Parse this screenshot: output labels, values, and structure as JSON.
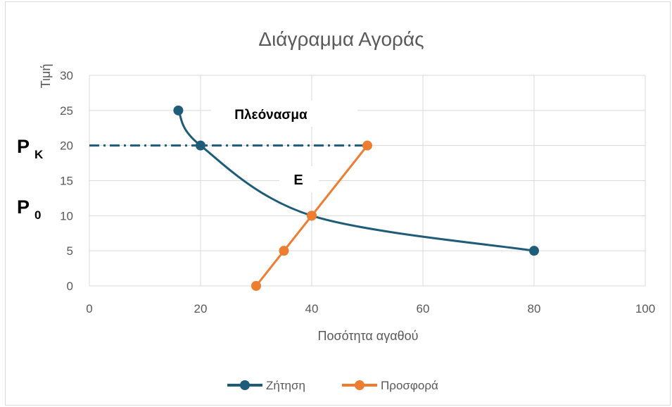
{
  "chart_data": {
    "type": "scatter",
    "title": "Διάγραμμα Αγοράς",
    "xlabel": "Ποσότητα αγαθού",
    "ylabel": "Τιμή",
    "xlim": [
      0,
      100
    ],
    "ylim": [
      0,
      30
    ],
    "x_ticks": [
      0,
      20,
      40,
      60,
      80,
      100
    ],
    "y_ticks": [
      0,
      5,
      10,
      15,
      20,
      25,
      30
    ],
    "grid": true,
    "legend_position": "bottom",
    "series": [
      {
        "name": "Ζήτηση",
        "color": "#1f5c7a",
        "smooth": true,
        "points": [
          [
            16,
            25
          ],
          [
            20,
            20
          ],
          [
            40,
            10
          ],
          [
            80,
            5
          ]
        ]
      },
      {
        "name": "Προσφορά",
        "color": "#ed7d31",
        "smooth": false,
        "points": [
          [
            30,
            0
          ],
          [
            35,
            5
          ],
          [
            40,
            10
          ],
          [
            50,
            20
          ]
        ]
      }
    ],
    "reference_line": {
      "y": 20,
      "x_end": 50,
      "style": "dash-dot",
      "color": "#1f5c7a"
    },
    "annotations": {
      "surplus": "Πλεόνασμα",
      "equilibrium": "E",
      "price_k_main": "P",
      "price_k_sub": "K",
      "price_0_main": "P",
      "price_0_sub": "0"
    }
  }
}
